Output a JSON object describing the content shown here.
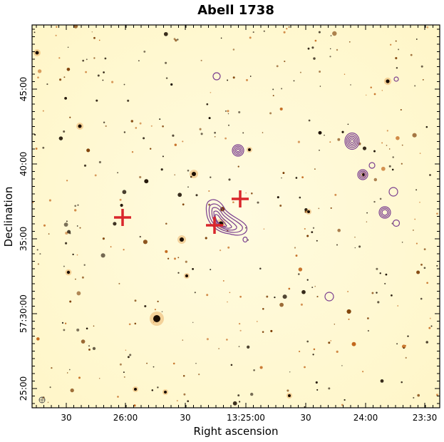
{
  "figure": {
    "title": "Abell 1738",
    "xlabel": "Right ascension",
    "ylabel": "Declination",
    "ra_ticks": [
      "30",
      "26:00",
      "30",
      "13:25:00",
      "30",
      "24:00",
      "23:30"
    ],
    "dec_ticks": [
      "25:00",
      "57:30:00",
      "35:00",
      "40:00",
      "45:00"
    ]
  },
  "colors": {
    "background_image": "#fffbd6",
    "source_dark": "#1a0d00",
    "contour": "#7b3f8f",
    "marker": "#d9262b",
    "frame": "#000000"
  },
  "markers": {
    "shape": "red-cross",
    "count": 3
  },
  "contours": {
    "shape": "radio-contour",
    "sources": 9
  }
}
